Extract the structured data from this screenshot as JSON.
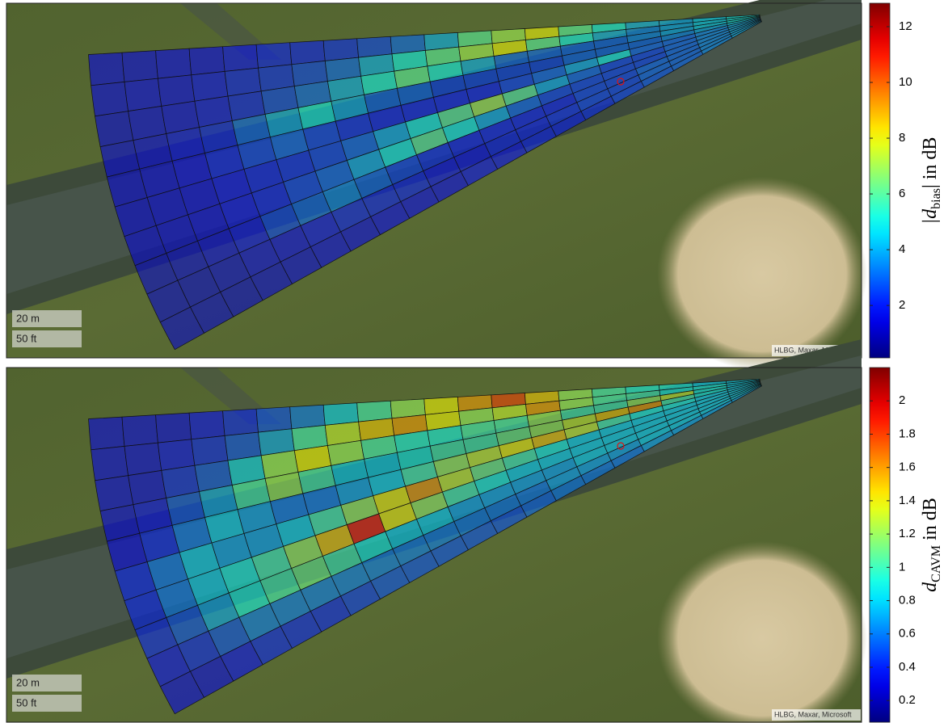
{
  "chart_data": [
    {
      "type": "heatmap",
      "colorbar": {
        "label": {
          "prefix": "|d",
          "subscript": "bias",
          "suffix": "| in dB"
        },
        "lim": [
          0.12,
          12.84
        ],
        "ticks": [
          2,
          4,
          6,
          8,
          10,
          12
        ]
      },
      "scale": [
        "20 m",
        "50 ft"
      ],
      "attribution": "HLBG, Maxar, Microsoft",
      "values": [
        [
          1.5,
          1.5,
          1.6,
          1.6,
          1.8,
          2,
          2,
          2.2,
          2.5,
          3,
          4,
          6,
          7,
          8,
          6,
          5,
          4,
          4,
          4.5,
          5
        ],
        [
          1.5,
          1.6,
          1.6,
          1.8,
          2,
          2.2,
          2.5,
          3,
          4,
          5,
          6,
          7,
          8,
          6,
          5,
          4,
          3.5,
          4,
          4.5,
          5
        ],
        [
          1.4,
          1.5,
          1.6,
          1.8,
          2,
          2.5,
          3,
          4,
          5,
          6,
          5,
          4,
          3,
          3,
          3,
          3,
          3.5,
          4,
          4.5,
          5
        ],
        [
          1.4,
          1.5,
          1.8,
          2,
          3,
          4,
          5,
          4,
          3,
          3,
          2.5,
          2.5,
          2.5,
          2.5,
          3,
          3,
          3,
          3.5,
          4,
          4.5
        ],
        [
          1.3,
          1.4,
          1.6,
          2,
          2.5,
          3,
          2.5,
          2.2,
          2,
          2,
          2,
          2,
          2.5,
          3,
          4,
          5,
          3,
          3,
          3.5,
          4
        ],
        [
          1.3,
          1.4,
          1.5,
          1.8,
          2,
          2.2,
          2.5,
          3,
          4,
          5,
          6,
          7,
          6,
          4,
          3,
          2.5,
          2.5,
          3,
          3.5,
          4
        ],
        [
          1.3,
          1.4,
          1.5,
          1.8,
          2,
          2.5,
          3,
          4,
          5,
          6,
          5,
          4,
          3,
          2.5,
          2.5,
          2.5,
          2.5,
          3,
          3.5,
          4
        ],
        [
          1.2,
          1.3,
          1.5,
          1.8,
          2.5,
          3,
          3.5,
          3,
          2.5,
          2.2,
          2,
          2,
          2,
          2,
          2.5,
          2.5,
          3,
          3,
          3.5,
          4
        ],
        [
          1.2,
          1.2,
          1.3,
          1.5,
          1.6,
          1.8,
          2,
          2,
          2,
          1.8,
          1.8,
          2,
          2,
          2.2,
          2.5,
          2.5,
          3,
          3,
          3.5,
          4
        ],
        [
          1.2,
          1.2,
          1.2,
          1.3,
          1.4,
          1.5,
          1.5,
          1.6,
          1.6,
          1.6,
          1.8,
          1.8,
          2,
          2,
          2.2,
          2.5,
          2.8,
          3,
          3.5,
          4
        ]
      ]
    },
    {
      "type": "heatmap",
      "colorbar": {
        "label": {
          "prefix": "d",
          "subscript": "CAVM",
          "suffix": " in dB"
        },
        "lim": [
          0.07,
          2.2
        ],
        "ticks": [
          0.2,
          0.4,
          0.6,
          0.8,
          1,
          1.2,
          1.4,
          1.6,
          1.8,
          2
        ]
      },
      "scale": [
        "20 m",
        "50 ft"
      ],
      "attribution": "HLBG, Maxar, Microsoft",
      "values": [
        [
          0.3,
          0.3,
          0.3,
          0.35,
          0.4,
          0.5,
          0.6,
          0.8,
          1.0,
          1.2,
          1.4,
          1.6,
          1.8,
          1.5,
          1.2,
          1.0,
          0.9,
          0.9,
          0.8,
          0.8
        ],
        [
          0.3,
          0.3,
          0.35,
          0.4,
          0.5,
          0.7,
          1.0,
          1.3,
          1.5,
          1.6,
          1.4,
          1.2,
          1.3,
          1.6,
          1.2,
          1.0,
          1.0,
          0.9,
          0.9,
          0.8
        ],
        [
          0.3,
          0.3,
          0.4,
          0.5,
          0.8,
          1.2,
          1.4,
          1.2,
          1.0,
          0.9,
          0.9,
          1.0,
          1.0,
          1.2,
          1.0,
          1.0,
          1.2,
          1.3,
          0.9,
          0.8
        ],
        [
          0.3,
          0.35,
          0.5,
          0.7,
          1.0,
          1.2,
          1.0,
          0.8,
          0.8,
          0.9,
          1.0,
          1.0,
          1.1,
          1.2,
          1.3,
          1.5,
          1.6,
          1.0,
          0.9,
          0.8
        ],
        [
          0.3,
          0.4,
          0.6,
          0.8,
          0.7,
          0.6,
          0.6,
          0.7,
          0.8,
          1.0,
          1.2,
          1.3,
          1.4,
          1.5,
          1.3,
          1.0,
          0.9,
          0.9,
          0.8,
          0.8
        ],
        [
          0.4,
          0.6,
          0.8,
          0.7,
          0.7,
          0.8,
          1.0,
          1.2,
          1.4,
          1.6,
          1.3,
          1.1,
          1.0,
          0.9,
          0.8,
          0.8,
          0.8,
          0.8,
          0.8,
          0.8
        ],
        [
          0.4,
          0.6,
          0.8,
          0.9,
          1.0,
          1.2,
          1.5,
          1.9,
          1.4,
          1.2,
          1.0,
          0.9,
          0.8,
          0.8,
          0.8,
          0.8,
          0.8,
          0.8,
          0.8,
          0.8
        ],
        [
          0.4,
          0.5,
          0.7,
          0.9,
          1.0,
          1.1,
          1.0,
          0.9,
          0.8,
          0.8,
          0.7,
          0.7,
          0.7,
          0.7,
          0.8,
          0.8,
          0.8,
          0.8,
          0.8,
          0.8
        ],
        [
          0.35,
          0.4,
          0.5,
          0.6,
          0.6,
          0.6,
          0.6,
          0.6,
          0.6,
          0.6,
          0.6,
          0.6,
          0.6,
          0.7,
          0.7,
          0.7,
          0.8,
          0.8,
          0.8,
          0.8
        ],
        [
          0.3,
          0.3,
          0.35,
          0.4,
          0.4,
          0.4,
          0.45,
          0.5,
          0.5,
          0.5,
          0.5,
          0.5,
          0.55,
          0.6,
          0.6,
          0.6,
          0.7,
          0.7,
          0.7,
          0.7
        ]
      ]
    }
  ]
}
